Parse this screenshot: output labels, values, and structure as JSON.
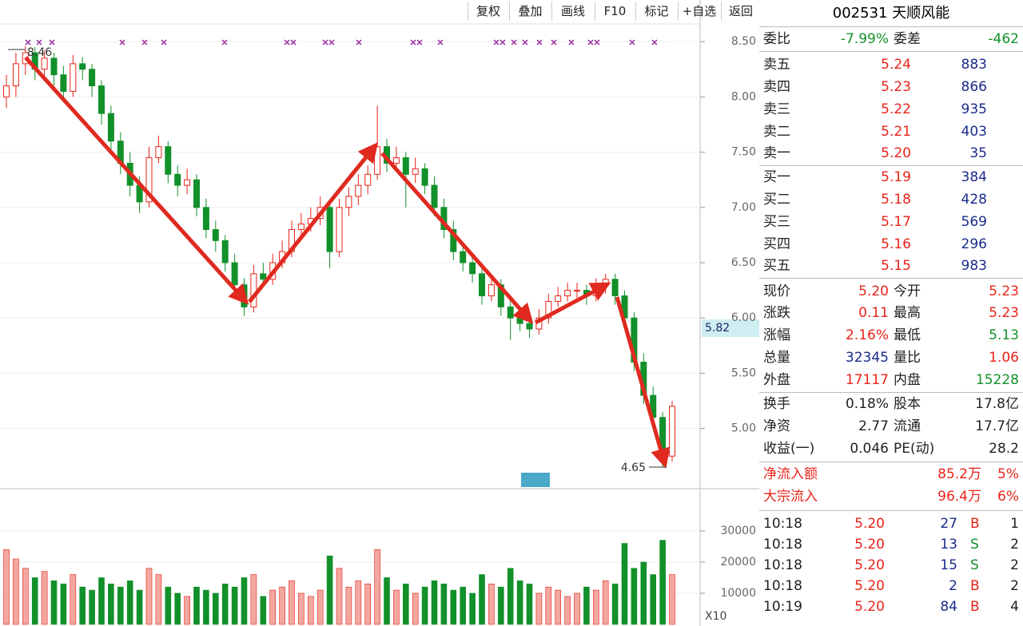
{
  "toolbar": [
    "复权",
    "叠加",
    "画线",
    "F10",
    "标记",
    "+自选",
    "返回"
  ],
  "header": "002531 天顺风能",
  "ratio": {
    "label": "委比",
    "value": "-7.99%",
    "label2": "委差",
    "value2": "-462"
  },
  "asks": [
    {
      "label": "卖五",
      "price": "5.24",
      "volume": "883"
    },
    {
      "label": "卖四",
      "price": "5.23",
      "volume": "866"
    },
    {
      "label": "卖三",
      "price": "5.22",
      "volume": "935"
    },
    {
      "label": "卖二",
      "price": "5.21",
      "volume": "403"
    },
    {
      "label": "卖一",
      "price": "5.20",
      "volume": "35"
    }
  ],
  "bids": [
    {
      "label": "买一",
      "price": "5.19",
      "volume": "384"
    },
    {
      "label": "买二",
      "price": "5.18",
      "volume": "428"
    },
    {
      "label": "买三",
      "price": "5.17",
      "volume": "569"
    },
    {
      "label": "买四",
      "price": "5.16",
      "volume": "296"
    },
    {
      "label": "买五",
      "price": "5.15",
      "volume": "983"
    }
  ],
  "quote": [
    {
      "l1": "现价",
      "v1": "5.20",
      "l2": "今开",
      "v2": "5.23"
    },
    {
      "l1": "涨跌",
      "v1": "0.11",
      "l2": "最高",
      "v2": "5.23"
    },
    {
      "l1": "涨幅",
      "v1": "2.16%",
      "l2": "最低",
      "v2": "5.13"
    },
    {
      "l1": "总量",
      "v1": "32345",
      "l2": "量比",
      "v2": "1.06"
    },
    {
      "l1": "外盘",
      "v1": "17117",
      "l2": "内盘",
      "v2": "15228"
    }
  ],
  "fundamentals": [
    {
      "l1": "换手",
      "v1": "0.18%",
      "l2": "股本",
      "v2": "17.8亿"
    },
    {
      "l1": "净资",
      "v1": "2.77",
      "l2": "流通",
      "v2": "17.7亿"
    },
    {
      "l1": "收益(一)",
      "v1": "0.046",
      "l2": "PE(动)",
      "v2": "28.2"
    }
  ],
  "flows": [
    {
      "label": "净流入额",
      "value": "85.2万",
      "pct": "5%"
    },
    {
      "label": "大宗流入",
      "value": "96.4万",
      "pct": "6%"
    }
  ],
  "trades": [
    {
      "time": "10:18",
      "price": "5.20",
      "volume": "27",
      "side": "B",
      "count": "1"
    },
    {
      "time": "10:18",
      "price": "5.20",
      "volume": "13",
      "side": "S",
      "count": "2"
    },
    {
      "time": "10:18",
      "price": "5.20",
      "volume": "15",
      "side": "S",
      "count": "2"
    },
    {
      "time": "10:18",
      "price": "5.20",
      "volume": "2",
      "side": "B",
      "count": "2"
    },
    {
      "time": "10:19",
      "price": "5.20",
      "volume": "84",
      "side": "B",
      "count": "4"
    }
  ],
  "chart": {
    "type": "candlestick",
    "up_color": "#e8231a",
    "down_color": "#12902a",
    "ylim": [
      4.47,
      8.66
    ],
    "yticks": [
      {
        "value": 8.5,
        "label": "8.50"
      },
      {
        "value": 8.0,
        "label": "8.00"
      },
      {
        "value": 7.5,
        "label": "7.50"
      },
      {
        "value": 7.0,
        "label": "7.00"
      },
      {
        "value": 6.5,
        "label": "6.50"
      },
      {
        "value": 6.0,
        "label": "6.00"
      },
      {
        "value": 5.5,
        "label": "5.50"
      },
      {
        "value": 5.0,
        "label": "5.00"
      }
    ],
    "volume_ylim": [
      0,
      41000
    ],
    "volume_ticks": [
      30000,
      20000,
      10000
    ],
    "high_label": "8.46",
    "low_label": "4.65",
    "price_label": "5.82",
    "zoom_label": "X10",
    "ohlc": [
      [
        8.0,
        8.2,
        7.9,
        8.1
      ],
      [
        8.1,
        8.4,
        8.0,
        8.3
      ],
      [
        8.3,
        8.46,
        8.2,
        8.4
      ],
      [
        8.4,
        8.45,
        8.15,
        8.25
      ],
      [
        8.25,
        8.42,
        8.15,
        8.35
      ],
      [
        8.35,
        8.4,
        8.1,
        8.2
      ],
      [
        8.2,
        8.28,
        7.95,
        8.05
      ],
      [
        8.05,
        8.38,
        8.0,
        8.3
      ],
      [
        8.3,
        8.36,
        8.15,
        8.25
      ],
      [
        8.25,
        8.3,
        8.0,
        8.1
      ],
      [
        8.1,
        8.15,
        7.75,
        7.85
      ],
      [
        7.85,
        7.92,
        7.5,
        7.6
      ],
      [
        7.6,
        7.68,
        7.3,
        7.4
      ],
      [
        7.4,
        7.5,
        7.1,
        7.2
      ],
      [
        7.2,
        7.28,
        6.95,
        7.05
      ],
      [
        7.05,
        7.55,
        7.0,
        7.45
      ],
      [
        7.45,
        7.65,
        7.4,
        7.55
      ],
      [
        7.55,
        7.6,
        7.22,
        7.3
      ],
      [
        7.3,
        7.38,
        7.1,
        7.2
      ],
      [
        7.2,
        7.35,
        7.12,
        7.25
      ],
      [
        7.25,
        7.3,
        6.92,
        7.0
      ],
      [
        7.0,
        7.08,
        6.72,
        6.8
      ],
      [
        6.8,
        6.88,
        6.6,
        6.7
      ],
      [
        6.7,
        6.75,
        6.42,
        6.5
      ],
      [
        6.5,
        6.58,
        6.22,
        6.3
      ],
      [
        6.3,
        6.36,
        6.02,
        6.1
      ],
      [
        6.1,
        6.48,
        6.05,
        6.4
      ],
      [
        6.4,
        6.5,
        6.28,
        6.35
      ],
      [
        6.35,
        6.58,
        6.3,
        6.5
      ],
      [
        6.5,
        6.7,
        6.45,
        6.6
      ],
      [
        6.6,
        6.88,
        6.55,
        6.8
      ],
      [
        6.8,
        6.95,
        6.72,
        6.85
      ],
      [
        6.85,
        7.0,
        6.78,
        6.9
      ],
      [
        6.9,
        7.1,
        6.84,
        7.0
      ],
      [
        7.0,
        7.05,
        6.45,
        6.6
      ],
      [
        6.6,
        7.08,
        6.55,
        7.0
      ],
      [
        7.0,
        7.18,
        6.92,
        7.1
      ],
      [
        7.1,
        7.3,
        7.02,
        7.2
      ],
      [
        7.2,
        7.38,
        7.12,
        7.3
      ],
      [
        7.3,
        7.92,
        7.25,
        7.55
      ],
      [
        7.55,
        7.62,
        7.32,
        7.4
      ],
      [
        7.4,
        7.55,
        7.35,
        7.45
      ],
      [
        7.45,
        7.5,
        7.0,
        7.3
      ],
      [
        7.3,
        7.45,
        7.22,
        7.35
      ],
      [
        7.35,
        7.4,
        7.12,
        7.2
      ],
      [
        7.2,
        7.28,
        6.92,
        7.0
      ],
      [
        7.0,
        7.08,
        6.72,
        6.8
      ],
      [
        6.8,
        6.88,
        6.52,
        6.6
      ],
      [
        6.6,
        6.68,
        6.42,
        6.5
      ],
      [
        6.5,
        6.58,
        6.32,
        6.4
      ],
      [
        6.4,
        6.48,
        6.12,
        6.2
      ],
      [
        6.2,
        6.38,
        6.15,
        6.3
      ],
      [
        6.3,
        6.35,
        6.02,
        6.1
      ],
      [
        6.1,
        6.18,
        5.8,
        6.0
      ],
      [
        6.0,
        6.1,
        5.88,
        5.95
      ],
      [
        5.95,
        6.02,
        5.82,
        5.9
      ],
      [
        5.9,
        6.08,
        5.85,
        6.0
      ],
      [
        6.0,
        6.22,
        5.95,
        6.15
      ],
      [
        6.15,
        6.28,
        6.1,
        6.2
      ],
      [
        6.2,
        6.32,
        6.15,
        6.25
      ],
      [
        6.25,
        6.32,
        6.18,
        6.25
      ],
      [
        6.25,
        6.3,
        6.12,
        6.2
      ],
      [
        6.2,
        6.36,
        6.15,
        6.3
      ],
      [
        6.3,
        6.4,
        6.22,
        6.35
      ],
      [
        6.35,
        6.4,
        6.12,
        6.2
      ],
      [
        6.2,
        6.25,
        5.92,
        6.0
      ],
      [
        6.0,
        6.05,
        5.52,
        5.6
      ],
      [
        5.6,
        5.68,
        5.22,
        5.3
      ],
      [
        5.3,
        5.38,
        5.02,
        5.1
      ],
      [
        5.1,
        5.15,
        4.65,
        4.75
      ],
      [
        4.75,
        5.25,
        4.7,
        5.2
      ]
    ],
    "volume": [
      24000,
      21000,
      18000,
      15000,
      17000,
      14000,
      13000,
      16000,
      12000,
      11000,
      15000,
      13000,
      12000,
      14000,
      11000,
      18000,
      16000,
      12000,
      10000,
      9000,
      12000,
      11000,
      10000,
      13000,
      12000,
      15000,
      16000,
      9000,
      11000,
      12000,
      14000,
      10000,
      9000,
      11000,
      22000,
      18000,
      12000,
      14000,
      13000,
      24000,
      15000,
      11000,
      13000,
      10000,
      12000,
      14000,
      13000,
      11000,
      12000,
      10000,
      16000,
      13000,
      12000,
      18000,
      14000,
      13000,
      10000,
      12000,
      11000,
      9000,
      10000,
      12000,
      11000,
      14000,
      13000,
      26000,
      18000,
      20000,
      16000,
      27000,
      16000
    ]
  }
}
